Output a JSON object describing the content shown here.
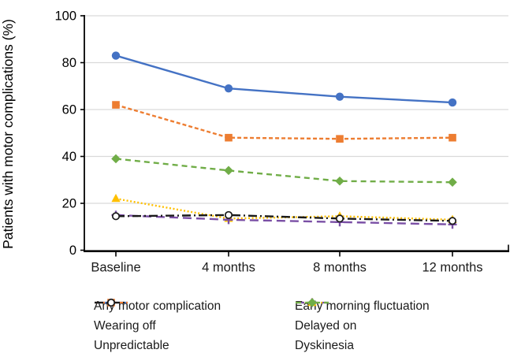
{
  "chart_data": {
    "type": "line",
    "title": "",
    "xlabel": "",
    "ylabel": "Patients with motor complications (%)",
    "categories": [
      "Baseline",
      "4 months",
      "8 months",
      "12 months"
    ],
    "ylim": [
      0,
      100
    ],
    "yticks": [
      0,
      20,
      40,
      60,
      80,
      100
    ],
    "grid": "horizontal",
    "gridline_color": "#d9d9d9",
    "axis_color": "#000000",
    "legend_position": "bottom, two columns",
    "series": [
      {
        "name": "Any motor complication",
        "values": [
          83,
          69,
          65.5,
          63
        ],
        "color": "#4472C4",
        "line": "solid",
        "marker": "circle"
      },
      {
        "name": "Wearing off",
        "values": [
          62,
          48,
          47.5,
          48
        ],
        "color": "#ED7D31",
        "line": "dash",
        "marker": "square"
      },
      {
        "name": "Unpredictable",
        "values": [
          14.5,
          15,
          13.5,
          12.5
        ],
        "color": "#1a1a1a",
        "line": "dash-dot",
        "marker": "open-circle"
      },
      {
        "name": "Early morning fluctuation",
        "values": [
          22,
          13.5,
          14.5,
          13
        ],
        "color": "#FFC000",
        "line": "dotted",
        "marker": "triangle"
      },
      {
        "name": "Delayed on",
        "values": [
          15,
          13,
          12,
          11
        ],
        "color": "#7A4FA5",
        "line": "long-dash",
        "marker": "plus"
      },
      {
        "name": "Dyskinesia",
        "values": [
          39,
          34,
          29.5,
          29
        ],
        "color": "#70AD47",
        "line": "medium-dash",
        "marker": "diamond"
      }
    ]
  }
}
